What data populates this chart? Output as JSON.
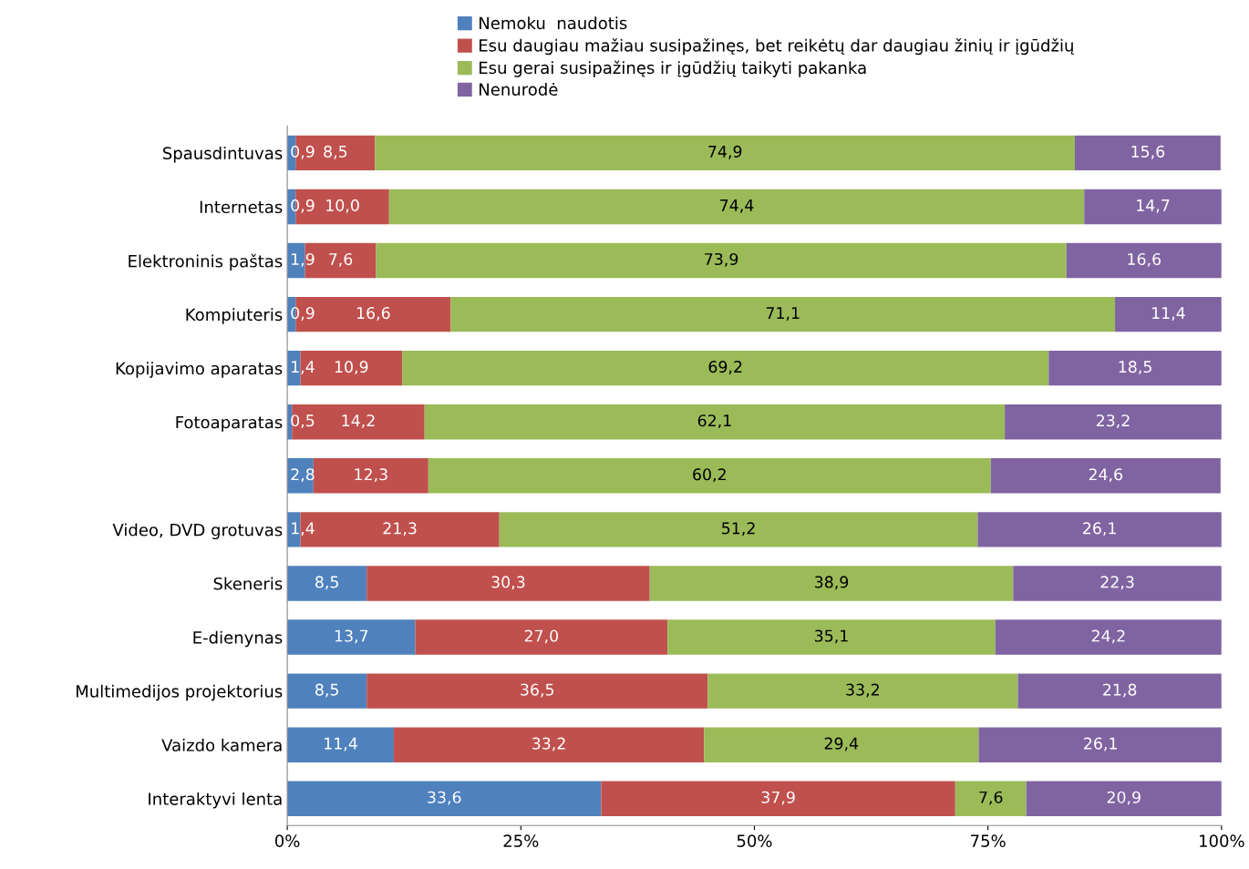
{
  "chart_data": {
    "type": "bar",
    "orientation": "horizontal",
    "stacked": true,
    "legend": "top",
    "grid": false,
    "categories": [
      "Spausdintuvas",
      "Internetas",
      "Elektroninis paštas",
      "Kompiuteris",
      "Kopijavimo aparatas",
      "Fotoaparatas",
      null,
      "Video, DVD grotuvas",
      "Skeneris",
      "E-dienynas",
      "Multimedijos projektorius",
      "Vaizdo kamera",
      "Interaktyvi lenta"
    ],
    "xlim": [
      0,
      100
    ],
    "xticks": [
      {
        "value": 0,
        "label": "0%"
      },
      {
        "value": 25,
        "label": "25%"
      },
      {
        "value": 50,
        "label": "50%"
      },
      {
        "value": 75,
        "label": "75%"
      },
      {
        "value": 100,
        "label": "100%"
      }
    ],
    "series": [
      {
        "name": "Nemoku  naudotis",
        "color": "#4f81bd",
        "values": [
          0.9,
          0.9,
          1.9,
          0.9,
          1.4,
          0.5,
          2.8,
          1.4,
          8.5,
          13.7,
          8.5,
          11.4,
          33.6
        ],
        "value_labels": [
          "0,9",
          "0,9",
          "1,9",
          "0,9",
          "1,4",
          "0,5",
          "2,8",
          "1,4",
          "8,5",
          "13,7",
          "8,5",
          "11,4",
          "33,6"
        ]
      },
      {
        "name": "Esu daugiau mažiau susipažinęs, bet reikėtų dar daugiau žinių ir įgūdžių",
        "color": "#c0504d",
        "values": [
          8.5,
          10.0,
          7.6,
          16.6,
          10.9,
          14.2,
          12.3,
          21.3,
          30.3,
          27.0,
          36.5,
          33.2,
          37.9
        ],
        "value_labels": [
          "8,5",
          "10,0",
          "7,6",
          "16,6",
          "10,9",
          "14,2",
          "12,3",
          "21,3",
          "30,3",
          "27,0",
          "36,5",
          "33,2",
          "37,9"
        ]
      },
      {
        "name": "Esu gerai susipažinęs ir įgūdžių taikyti pakanka",
        "color": "#9bbb59",
        "values": [
          74.9,
          74.4,
          73.9,
          71.1,
          69.2,
          62.1,
          60.2,
          51.2,
          38.9,
          35.1,
          33.2,
          29.4,
          7.6
        ],
        "value_labels": [
          "74,9",
          "74,4",
          "73,9",
          "71,1",
          "69,2",
          "62,1",
          "60,2",
          "51,2",
          "38,9",
          "35,1",
          "33,2",
          "29,4",
          "7,6"
        ]
      },
      {
        "name": "Nenurodė",
        "color": "#8064a2",
        "values": [
          15.6,
          14.7,
          16.6,
          11.4,
          18.5,
          23.2,
          24.6,
          26.1,
          22.3,
          24.2,
          21.8,
          26.1,
          20.9
        ],
        "value_labels": [
          "15,6",
          "14,7",
          "16,6",
          "11,4",
          "18,5",
          "23,2",
          "24,6",
          "26,1",
          "22,3",
          "24,2",
          "21,8",
          "26,1",
          "20,9"
        ]
      }
    ]
  }
}
